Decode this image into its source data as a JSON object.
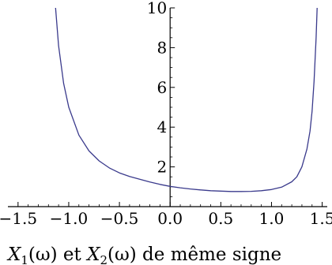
{
  "chart_data": {
    "type": "line",
    "title": "",
    "xlabel": "",
    "ylabel": "",
    "caption": {
      "x1": "X",
      "sub1": "1",
      "arg1": "(ω)",
      "et": " et ",
      "x2": "X",
      "sub2": "2",
      "arg2": "(ω)",
      "rest": " de même signe"
    },
    "xlim": [
      -1.6,
      1.55
    ],
    "ylim": [
      0.0,
      10.0
    ],
    "x_ticks": [
      -1.5,
      -1.0,
      -0.5,
      0.0,
      0.5,
      1.0,
      1.5
    ],
    "x_tick_labels": [
      "−1.5",
      "−1.0",
      "−0.5",
      "0.0",
      "0.5",
      "1.0",
      "1.5"
    ],
    "y_ticks": [
      2,
      4,
      6,
      8,
      10
    ],
    "y_tick_labels": [
      "2",
      "4",
      "6",
      "8",
      "10"
    ],
    "grid": false,
    "line_color": "#3a3a8c",
    "series": [
      {
        "x": [
          -1.13,
          -1.1,
          -1.05,
          -1.0,
          -0.9,
          -0.8,
          -0.7,
          -0.6,
          -0.5,
          -0.4,
          -0.3,
          -0.2,
          -0.1,
          0.0,
          0.1,
          0.2,
          0.3,
          0.4,
          0.5,
          0.6,
          0.7,
          0.8,
          0.9,
          1.0,
          1.1,
          1.2,
          1.25,
          1.3,
          1.35,
          1.38,
          1.4,
          1.42,
          1.44,
          1.45
        ],
        "y": [
          10.0,
          8.1,
          6.2,
          5.0,
          3.6,
          2.8,
          2.3,
          1.95,
          1.7,
          1.52,
          1.38,
          1.24,
          1.12,
          1.02,
          0.95,
          0.89,
          0.84,
          0.8,
          0.78,
          0.76,
          0.76,
          0.77,
          0.8,
          0.86,
          0.98,
          1.25,
          1.5,
          2.0,
          2.9,
          3.8,
          4.8,
          6.3,
          8.5,
          10.0
        ]
      }
    ]
  }
}
